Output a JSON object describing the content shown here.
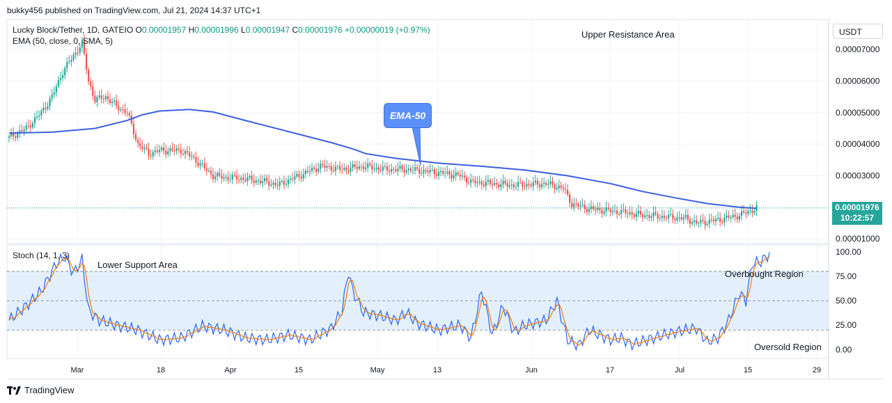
{
  "top_bar": {
    "publisher": "bukky456 published on TradingView.com, Jul 21, 2024 14:37 UTC+1"
  },
  "legend": {
    "symbol": "Lucky Block/Tether, 1D, GATEIO",
    "O_label": "O",
    "O": "0.00001957",
    "H_label": "H",
    "H": "0.00001996",
    "L_label": "L",
    "L": "0.00001947",
    "C_label": "C",
    "C": "0.00001976",
    "change": "+0.00000019 (+0.97%)",
    "ema": "EMA (50, close, 0, SMA, 5)"
  },
  "annotations": {
    "upper_resistance": "Upper Resistance Area",
    "lower_support": "Lower Support Area",
    "ema_callout": "EMA-50",
    "overbought": "Overbought Region",
    "oversold": "Oversold Region"
  },
  "price_axis": {
    "currency": "USDT",
    "last_price": "0.00001976",
    "countdown": "10:22:57"
  },
  "stoch": {
    "title": "Stoch (14, 1, 3)"
  },
  "footer": {
    "brand": "TradingView"
  },
  "colors": {
    "up": "#26a69a",
    "down": "#ef5350",
    "ema": "#3b5fe0",
    "stoch_k": "#2962ff",
    "stoch_d": "#f57c00",
    "band": "#e3f0fb"
  },
  "chart_data": [
    {
      "type": "candlestick",
      "symbol": "Lucky Block/Tether",
      "interval": "1D",
      "exchange": "GATEIO",
      "y_ticks": [
        "0.00007000",
        "0.00006000",
        "0.00005000",
        "0.00004000",
        "0.00003000",
        "0.00002000",
        "0.00001000"
      ],
      "ylim": [
        8.5e-06,
        7.95e-05
      ],
      "x_ticks": [
        "Mar",
        "18",
        "Apr",
        "15",
        "May",
        "13",
        "Jun",
        "17",
        "Jul",
        "15",
        "29"
      ],
      "ema_series": {
        "name": "EMA (50, close, 0, SMA, 5)",
        "points": [
          [
            0,
            4.35e-05
          ],
          [
            20,
            4.38e-05
          ],
          [
            40,
            4.5e-05
          ],
          [
            55,
            4.75e-05
          ],
          [
            62,
            4.93e-05
          ],
          [
            70,
            5.05e-05
          ],
          [
            84,
            5.1e-05
          ],
          [
            95,
            5.02e-05
          ],
          [
            110,
            4.75e-05
          ],
          [
            130,
            4.4e-05
          ],
          [
            150,
            4.05e-05
          ],
          [
            160,
            3.85e-05
          ],
          [
            166,
            3.7e-05
          ],
          [
            180,
            3.55e-05
          ],
          [
            200,
            3.4e-05
          ],
          [
            220,
            3.3e-05
          ],
          [
            240,
            3.18e-05
          ],
          [
            260,
            3e-05
          ],
          [
            280,
            2.75e-05
          ],
          [
            295,
            2.5e-05
          ],
          [
            310,
            2.3e-05
          ],
          [
            325,
            2.12e-05
          ],
          [
            340,
            2e-05
          ],
          [
            348,
            1.97e-05
          ]
        ]
      },
      "last_price": 1.976e-05
    },
    {
      "type": "line",
      "title": "Stoch (14, 1, 3)",
      "y_ticks": [
        "100.00",
        "75.00",
        "50.00",
        "25.00",
        "0.00"
      ],
      "ylim": [
        -9,
        107
      ],
      "bands": [
        20,
        50,
        80
      ]
    }
  ]
}
